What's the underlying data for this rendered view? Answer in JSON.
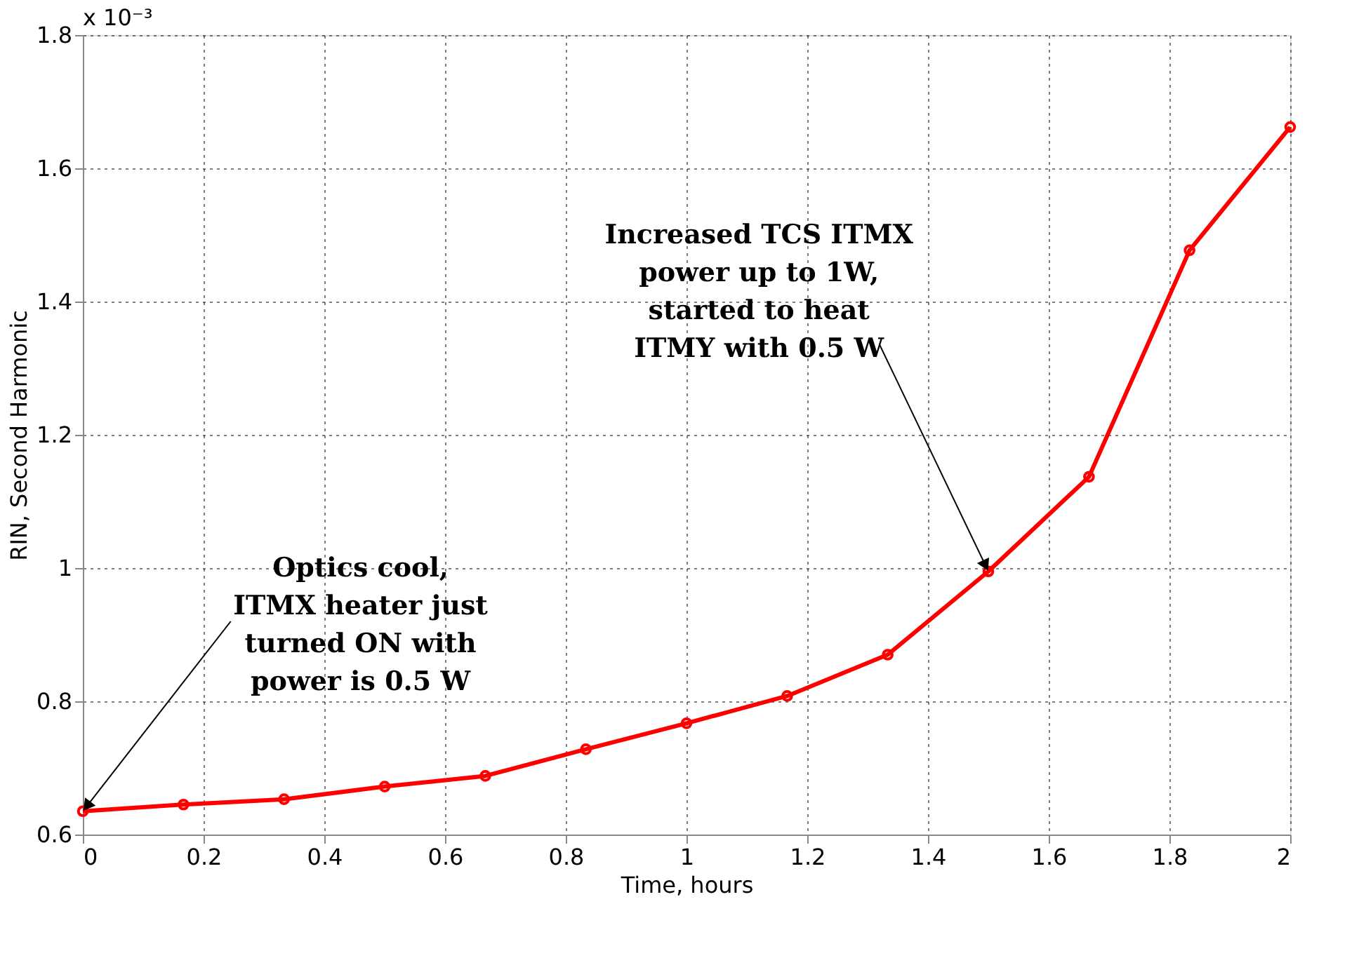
{
  "chart_data": {
    "type": "line",
    "xlabel": "Time, hours",
    "ylabel": "RIN, Second Harmonic",
    "x": [
      0,
      0.1667,
      0.3333,
      0.5,
      0.6667,
      0.8333,
      1,
      1.1667,
      1.3333,
      1.5,
      1.6667,
      1.8333,
      2
    ],
    "series": [
      {
        "color": "#ff0000",
        "values": [
          0.635,
          0.645,
          0.653,
          0.672,
          0.688,
          0.728,
          0.767,
          0.808,
          0.87,
          0.995,
          1.137,
          1.477,
          1.662
        ]
      }
    ],
    "xlim": [
      0,
      2
    ],
    "xticks": [
      0,
      0.2,
      0.4,
      0.6,
      0.8,
      1,
      1.2,
      1.4,
      1.6,
      1.8,
      2
    ],
    "ylim": [
      0.6,
      1.8
    ],
    "yticks": [
      0.6,
      0.8,
      1,
      1.2,
      1.4,
      1.6,
      1.8
    ],
    "grid": true,
    "marker": "circle",
    "line_style": "solid",
    "annotations": [
      "x 10⁻³",
      {
        "text": "Optics cool,\nITMX heater just\nturned ON with\npower is 0.5 W",
        "x": 0,
        "y": 0.635
      },
      {
        "text": "Increased TCS ITMX\npower up to 1W,\nstarted to heat\nITMY with 0.5 W",
        "x": 1.5,
        "y": 0.995
      }
    ]
  }
}
